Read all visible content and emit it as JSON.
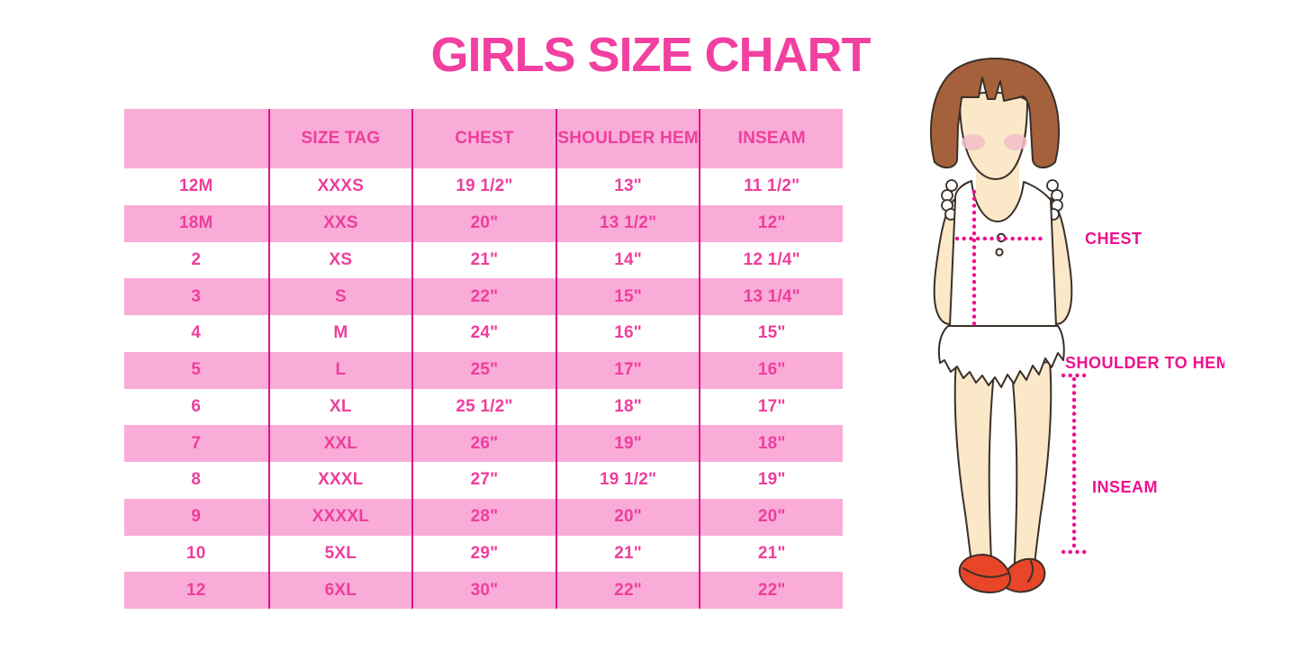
{
  "title": "GIRLS SIZE CHART",
  "size_table": {
    "columns": [
      "",
      "SIZE TAG",
      "CHEST",
      "SHOULDER HEM",
      "INSEAM"
    ],
    "rows": [
      [
        "12M",
        "XXXS",
        "19 1/2\"",
        "13\"",
        "11 1/2\""
      ],
      [
        "18M",
        "XXS",
        "20\"",
        "13 1/2\"",
        "12\""
      ],
      [
        "2",
        "XS",
        "21\"",
        "14\"",
        "12 1/4\""
      ],
      [
        "3",
        "S",
        "22\"",
        "15\"",
        "13 1/4\""
      ],
      [
        "4",
        "M",
        "24\"",
        "16\"",
        "15\""
      ],
      [
        "5",
        "L",
        "25\"",
        "17\"",
        "16\""
      ],
      [
        "6",
        "XL",
        "25 1/2\"",
        "18\"",
        "17\""
      ],
      [
        "7",
        "XXL",
        "26\"",
        "19\"",
        "18\""
      ],
      [
        "8",
        "XXXL",
        "27\"",
        "19 1/2\"",
        "19\""
      ],
      [
        "9",
        "XXXXL",
        "28\"",
        "20\"",
        "20\""
      ],
      [
        "10",
        "5XL",
        "29\"",
        "21\"",
        "21\""
      ],
      [
        "12",
        "6XL",
        "30\"",
        "22\"",
        "22\""
      ]
    ]
  },
  "diagram": {
    "chest_label": "CHEST",
    "shoulder_to_hem_label": "SHOULDER TO HEM",
    "inseam_label": "INSEAM"
  },
  "colors": {
    "title_pink": "#F240A0",
    "row_pink": "#FAACD8",
    "table_text_pink": "#EE3E9D",
    "divider_magenta": "#E01186",
    "label_magenta": "#EE108E",
    "hair_brown": "#A5613C",
    "skin": "#FAE8C8",
    "blush": "#F4BFC9",
    "shoe_red": "#E94528",
    "outline": "#3A3028"
  }
}
